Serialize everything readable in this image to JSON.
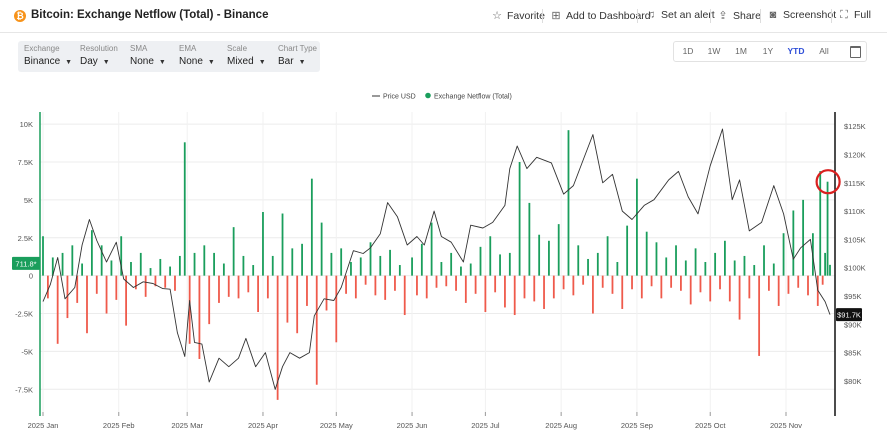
{
  "header": {
    "title": "Bitcoin: Exchange Netflow (Total) - Binance",
    "favorite": "Favorite",
    "add_dashboard": "Add to Dashboard",
    "set_alert": "Set an alert",
    "share": "Share",
    "screenshot": "Screenshot",
    "full": "Full"
  },
  "controls": [
    {
      "label": "Exchange",
      "value": "Binance"
    },
    {
      "label": "Resolution",
      "value": "Day"
    },
    {
      "label": "SMA",
      "value": "None"
    },
    {
      "label": "EMA",
      "value": "None"
    },
    {
      "label": "Scale",
      "value": "Mixed"
    },
    {
      "label": "Chart Type",
      "value": "Bar"
    }
  ],
  "ranges": [
    "1D",
    "1W",
    "1M",
    "1Y",
    "YTD",
    "All"
  ],
  "active_range": "YTD",
  "colors": {
    "positive": "#1a9e5c",
    "negative": "#ef5a4b",
    "price_line": "#333333",
    "accent": "#2f4fd8",
    "annotation": "#d9201f"
  },
  "chart_data": {
    "type": "bar",
    "legend": [
      "Price USD",
      "Exchange Netflow (Total)"
    ],
    "legend_placement": "top-center",
    "left_axis": {
      "ticks": [
        10000,
        7500,
        5000,
        2500,
        0,
        -2500,
        -5000,
        -7500
      ],
      "tick_labels": [
        "10K",
        "7.5K",
        "5K",
        "2.5K",
        "0",
        "-2.5K",
        "-5K",
        "-7.5K"
      ],
      "range": [
        -9000,
        10800
      ]
    },
    "right_axis": {
      "ticks": [
        125000,
        120000,
        115000,
        110000,
        105000,
        100000,
        95000,
        90000,
        85000,
        80000
      ],
      "tick_labels": [
        "$125K",
        "$120K",
        "$115K",
        "$110K",
        "$105K",
        "$100K",
        "$95K",
        "$90K",
        "$85K",
        "$80K"
      ],
      "range": [
        74500,
        127500
      ]
    },
    "x_labels": [
      "2025 Jan",
      "2025 Feb",
      "2025 Mar",
      "2025 Apr",
      "2025 May",
      "2025 Jun",
      "2025 Jul",
      "2025 Aug",
      "2025 Sep",
      "2025 Oct",
      "2025 Nov"
    ],
    "x_label_days": [
      0,
      31,
      59,
      90,
      120,
      151,
      181,
      212,
      243,
      273,
      304
    ],
    "start_date": "2025-01-01",
    "end_date": "2025-11-19",
    "current_netflow_label": "711.8*",
    "current_price_label": "$91.7K",
    "grid": true,
    "price_points": [
      [
        "2025-01-01",
        94000
      ],
      [
        "2025-01-04",
        97000
      ],
      [
        "2025-01-07",
        101800
      ],
      [
        "2025-01-10",
        94500
      ],
      [
        "2025-01-14",
        96500
      ],
      [
        "2025-01-17",
        104000
      ],
      [
        "2025-01-20",
        108500
      ],
      [
        "2025-01-23",
        104800
      ],
      [
        "2025-01-27",
        101000
      ],
      [
        "2025-01-31",
        104500
      ],
      [
        "2025-02-03",
        98000
      ],
      [
        "2025-02-07",
        96500
      ],
      [
        "2025-02-11",
        97500
      ],
      [
        "2025-02-15",
        97200
      ],
      [
        "2025-02-19",
        96300
      ],
      [
        "2025-02-22",
        96200
      ],
      [
        "2025-02-25",
        88500
      ],
      [
        "2025-02-28",
        84300
      ],
      [
        "2025-03-02",
        94200
      ],
      [
        "2025-03-04",
        86800
      ],
      [
        "2025-03-07",
        86500
      ],
      [
        "2025-03-10",
        79800
      ],
      [
        "2025-03-14",
        84000
      ],
      [
        "2025-03-18",
        82500
      ],
      [
        "2025-03-22",
        84000
      ],
      [
        "2025-03-25",
        87500
      ],
      [
        "2025-03-29",
        82500
      ],
      [
        "2025-04-02",
        85000
      ],
      [
        "2025-04-06",
        78500
      ],
      [
        "2025-04-09",
        82500
      ],
      [
        "2025-04-12",
        85000
      ],
      [
        "2025-04-16",
        84000
      ],
      [
        "2025-04-20",
        85000
      ],
      [
        "2025-04-22",
        91500
      ],
      [
        "2025-04-26",
        94500
      ],
      [
        "2025-04-30",
        94200
      ],
      [
        "2025-05-03",
        96500
      ],
      [
        "2025-05-08",
        103000
      ],
      [
        "2025-05-12",
        102500
      ],
      [
        "2025-05-15",
        103500
      ],
      [
        "2025-05-19",
        106000
      ],
      [
        "2025-05-22",
        111500
      ],
      [
        "2025-05-26",
        109000
      ],
      [
        "2025-05-30",
        104000
      ],
      [
        "2025-06-03",
        105500
      ],
      [
        "2025-06-06",
        104000
      ],
      [
        "2025-06-10",
        110000
      ],
      [
        "2025-06-13",
        105500
      ],
      [
        "2025-06-17",
        104500
      ],
      [
        "2025-06-22",
        101000
      ],
      [
        "2025-06-25",
        107500
      ],
      [
        "2025-06-30",
        107000
      ],
      [
        "2025-07-04",
        108000
      ],
      [
        "2025-07-09",
        111000
      ],
      [
        "2025-07-11",
        117500
      ],
      [
        "2025-07-14",
        121500
      ],
      [
        "2025-07-18",
        117500
      ],
      [
        "2025-07-22",
        119500
      ],
      [
        "2025-07-28",
        118500
      ],
      [
        "2025-08-02",
        113000
      ],
      [
        "2025-08-06",
        114500
      ],
      [
        "2025-08-10",
        119000
      ],
      [
        "2025-08-14",
        123500
      ],
      [
        "2025-08-18",
        115000
      ],
      [
        "2025-08-22",
        116500
      ],
      [
        "2025-08-26",
        110000
      ],
      [
        "2025-08-30",
        108500
      ],
      [
        "2025-09-04",
        111000
      ],
      [
        "2025-09-08",
        112000
      ],
      [
        "2025-09-14",
        115500
      ],
      [
        "2025-09-18",
        117000
      ],
      [
        "2025-09-22",
        112500
      ],
      [
        "2025-09-26",
        109500
      ],
      [
        "2025-10-01",
        118000
      ],
      [
        "2025-10-06",
        124500
      ],
      [
        "2025-10-10",
        112000
      ],
      [
        "2025-10-13",
        115500
      ],
      [
        "2025-10-17",
        106500
      ],
      [
        "2025-10-22",
        108000
      ],
      [
        "2025-10-27",
        114500
      ],
      [
        "2025-10-31",
        109500
      ],
      [
        "2025-11-04",
        101500
      ],
      [
        "2025-11-07",
        103500
      ],
      [
        "2025-11-11",
        105000
      ],
      [
        "2025-11-14",
        96000
      ],
      [
        "2025-11-17",
        94000
      ],
      [
        "2025-11-19",
        91700
      ]
    ],
    "netflow_points": [
      [
        "2025-01-01",
        2600
      ],
      [
        "2025-01-03",
        -1500
      ],
      [
        "2025-01-05",
        1200
      ],
      [
        "2025-01-07",
        -4500
      ],
      [
        "2025-01-09",
        1500
      ],
      [
        "2025-01-11",
        -2800
      ],
      [
        "2025-01-13",
        2000
      ],
      [
        "2025-01-15",
        -1800
      ],
      [
        "2025-01-17",
        800
      ],
      [
        "2025-01-19",
        -3800
      ],
      [
        "2025-01-21",
        3000
      ],
      [
        "2025-01-23",
        -1200
      ],
      [
        "2025-01-25",
        2000
      ],
      [
        "2025-01-27",
        -2500
      ],
      [
        "2025-01-29",
        1000
      ],
      [
        "2025-01-31",
        -1600
      ],
      [
        "2025-02-02",
        2600
      ],
      [
        "2025-02-04",
        -3300
      ],
      [
        "2025-02-06",
        900
      ],
      [
        "2025-02-08",
        -900
      ],
      [
        "2025-02-10",
        1500
      ],
      [
        "2025-02-12",
        -1400
      ],
      [
        "2025-02-14",
        500
      ],
      [
        "2025-02-16",
        -700
      ],
      [
        "2025-02-18",
        1100
      ],
      [
        "2025-02-20",
        -800
      ],
      [
        "2025-02-22",
        600
      ],
      [
        "2025-02-24",
        -1000
      ],
      [
        "2025-02-26",
        1300
      ],
      [
        "2025-02-28",
        8800
      ],
      [
        "2025-03-02",
        -4500
      ],
      [
        "2025-03-04",
        1500
      ],
      [
        "2025-03-06",
        -5500
      ],
      [
        "2025-03-08",
        2000
      ],
      [
        "2025-03-10",
        -3200
      ],
      [
        "2025-03-12",
        1500
      ],
      [
        "2025-03-14",
        -1800
      ],
      [
        "2025-03-16",
        800
      ],
      [
        "2025-03-18",
        -1400
      ],
      [
        "2025-03-20",
        3200
      ],
      [
        "2025-03-22",
        -1500
      ],
      [
        "2025-03-24",
        1300
      ],
      [
        "2025-03-26",
        -1100
      ],
      [
        "2025-03-28",
        700
      ],
      [
        "2025-03-30",
        -2400
      ],
      [
        "2025-04-01",
        4200
      ],
      [
        "2025-04-03",
        -1500
      ],
      [
        "2025-04-05",
        1300
      ],
      [
        "2025-04-07",
        -8200
      ],
      [
        "2025-04-09",
        4100
      ],
      [
        "2025-04-11",
        -3100
      ],
      [
        "2025-04-13",
        1800
      ],
      [
        "2025-04-15",
        -3800
      ],
      [
        "2025-04-17",
        2100
      ],
      [
        "2025-04-19",
        -2000
      ],
      [
        "2025-04-21",
        6400
      ],
      [
        "2025-04-23",
        -7200
      ],
      [
        "2025-04-25",
        3500
      ],
      [
        "2025-04-27",
        -2300
      ],
      [
        "2025-04-29",
        1500
      ],
      [
        "2025-05-01",
        -4400
      ],
      [
        "2025-05-03",
        1800
      ],
      [
        "2025-05-05",
        -1200
      ],
      [
        "2025-05-07",
        900
      ],
      [
        "2025-05-09",
        -1500
      ],
      [
        "2025-05-11",
        1200
      ],
      [
        "2025-05-13",
        -600
      ],
      [
        "2025-05-15",
        2200
      ],
      [
        "2025-05-17",
        -1300
      ],
      [
        "2025-05-19",
        1300
      ],
      [
        "2025-05-21",
        -1600
      ],
      [
        "2025-05-23",
        1700
      ],
      [
        "2025-05-25",
        -1000
      ],
      [
        "2025-05-27",
        700
      ],
      [
        "2025-05-29",
        -2600
      ],
      [
        "2025-06-01",
        1200
      ],
      [
        "2025-06-03",
        -1300
      ],
      [
        "2025-06-05",
        2100
      ],
      [
        "2025-06-07",
        -1500
      ],
      [
        "2025-06-09",
        3500
      ],
      [
        "2025-06-11",
        -800
      ],
      [
        "2025-06-13",
        900
      ],
      [
        "2025-06-15",
        -700
      ],
      [
        "2025-06-17",
        1500
      ],
      [
        "2025-06-19",
        -1000
      ],
      [
        "2025-06-21",
        600
      ],
      [
        "2025-06-23",
        -1800
      ],
      [
        "2025-06-25",
        800
      ],
      [
        "2025-06-27",
        -1200
      ],
      [
        "2025-06-29",
        1900
      ],
      [
        "2025-07-01",
        -2400
      ],
      [
        "2025-07-03",
        2600
      ],
      [
        "2025-07-05",
        -1100
      ],
      [
        "2025-07-07",
        1400
      ],
      [
        "2025-07-09",
        -2100
      ],
      [
        "2025-07-11",
        1500
      ],
      [
        "2025-07-13",
        -2600
      ],
      [
        "2025-07-15",
        7500
      ],
      [
        "2025-07-17",
        -1500
      ],
      [
        "2025-07-19",
        4800
      ],
      [
        "2025-07-21",
        -1700
      ],
      [
        "2025-07-23",
        2700
      ],
      [
        "2025-07-25",
        -2200
      ],
      [
        "2025-07-27",
        2300
      ],
      [
        "2025-07-29",
        -1500
      ],
      [
        "2025-07-31",
        3400
      ],
      [
        "2025-08-02",
        -900
      ],
      [
        "2025-08-04",
        9600
      ],
      [
        "2025-08-06",
        -1300
      ],
      [
        "2025-08-08",
        2000
      ],
      [
        "2025-08-10",
        -600
      ],
      [
        "2025-08-12",
        1100
      ],
      [
        "2025-08-14",
        -2500
      ],
      [
        "2025-08-16",
        1500
      ],
      [
        "2025-08-18",
        -800
      ],
      [
        "2025-08-20",
        2600
      ],
      [
        "2025-08-22",
        -1200
      ],
      [
        "2025-08-24",
        900
      ],
      [
        "2025-08-26",
        -2200
      ],
      [
        "2025-08-28",
        3300
      ],
      [
        "2025-08-30",
        -900
      ],
      [
        "2025-09-01",
        6400
      ],
      [
        "2025-09-03",
        -1500
      ],
      [
        "2025-09-05",
        2900
      ],
      [
        "2025-09-07",
        -700
      ],
      [
        "2025-09-09",
        2200
      ],
      [
        "2025-09-11",
        -1500
      ],
      [
        "2025-09-13",
        1200
      ],
      [
        "2025-09-15",
        -800
      ],
      [
        "2025-09-17",
        2000
      ],
      [
        "2025-09-19",
        -1000
      ],
      [
        "2025-09-21",
        1000
      ],
      [
        "2025-09-23",
        -1900
      ],
      [
        "2025-09-25",
        1800
      ],
      [
        "2025-09-27",
        -1100
      ],
      [
        "2025-09-29",
        900
      ],
      [
        "2025-10-01",
        -1700
      ],
      [
        "2025-10-03",
        1500
      ],
      [
        "2025-10-05",
        -900
      ],
      [
        "2025-10-07",
        2300
      ],
      [
        "2025-10-09",
        -1700
      ],
      [
        "2025-10-11",
        1000
      ],
      [
        "2025-10-13",
        -2900
      ],
      [
        "2025-10-15",
        1300
      ],
      [
        "2025-10-17",
        -1500
      ],
      [
        "2025-10-19",
        700
      ],
      [
        "2025-10-21",
        -5300
      ],
      [
        "2025-10-23",
        2000
      ],
      [
        "2025-10-25",
        -1000
      ],
      [
        "2025-10-27",
        800
      ],
      [
        "2025-10-29",
        -2000
      ],
      [
        "2025-10-31",
        2800
      ],
      [
        "2025-11-02",
        -1200
      ],
      [
        "2025-11-04",
        4300
      ],
      [
        "2025-11-06",
        -800
      ],
      [
        "2025-11-08",
        5000
      ],
      [
        "2025-11-10",
        -1300
      ],
      [
        "2025-11-12",
        2800
      ],
      [
        "2025-11-14",
        -2000
      ],
      [
        "2025-11-15",
        6900
      ],
      [
        "2025-11-16",
        -600
      ],
      [
        "2025-11-17",
        1500
      ],
      [
        "2025-11-18",
        6200
      ],
      [
        "2025-11-19",
        712
      ]
    ]
  }
}
